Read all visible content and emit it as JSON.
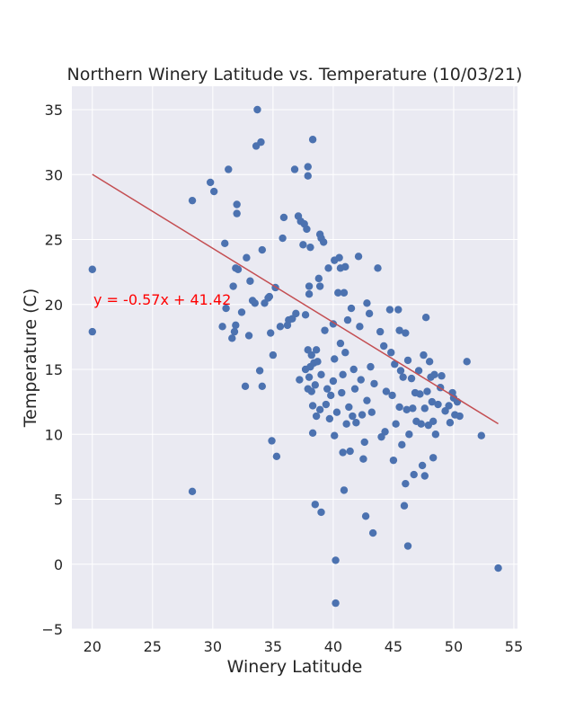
{
  "chart_data": {
    "type": "scatter",
    "title": "Northern Winery Latitude vs. Temperature (10/03/21)",
    "xlabel": "Winery Latitude",
    "ylabel": "Temperature (C)",
    "xlim": [
      18.3,
      55.3
    ],
    "ylim": [
      -5,
      36.8
    ],
    "xticks": [
      20,
      25,
      30,
      35,
      40,
      45,
      50,
      55
    ],
    "yticks": [
      -5,
      0,
      5,
      10,
      15,
      20,
      25,
      30,
      35
    ],
    "grid": true,
    "background": "#eaeaf2",
    "point_color": "#4c72b0",
    "regression": {
      "slope": -0.57,
      "intercept": 41.42,
      "x_range": [
        20,
        53.7
      ],
      "color": "#c44e52",
      "equation_label": "y = -0.57x + 41.42",
      "label_color": "#ff0000"
    },
    "points": [
      [
        20.0,
        22.7
      ],
      [
        20.0,
        17.9
      ],
      [
        28.3,
        28.0
      ],
      [
        28.3,
        5.6
      ],
      [
        29.8,
        29.4
      ],
      [
        30.1,
        28.7
      ],
      [
        30.8,
        18.3
      ],
      [
        31.0,
        24.7
      ],
      [
        31.1,
        19.7
      ],
      [
        31.3,
        30.4
      ],
      [
        31.6,
        17.4
      ],
      [
        31.7,
        21.4
      ],
      [
        31.8,
        17.9
      ],
      [
        31.9,
        18.4
      ],
      [
        31.9,
        22.8
      ],
      [
        32.0,
        27.0
      ],
      [
        32.0,
        27.7
      ],
      [
        32.1,
        22.7
      ],
      [
        32.4,
        19.4
      ],
      [
        32.7,
        13.7
      ],
      [
        32.8,
        23.6
      ],
      [
        33.0,
        17.6
      ],
      [
        33.1,
        21.8
      ],
      [
        33.3,
        20.3
      ],
      [
        33.5,
        20.1
      ],
      [
        33.6,
        32.2
      ],
      [
        33.7,
        35.0
      ],
      [
        33.9,
        14.9
      ],
      [
        34.0,
        32.5
      ],
      [
        34.1,
        24.2
      ],
      [
        34.1,
        13.7
      ],
      [
        34.3,
        20.1
      ],
      [
        34.6,
        20.5
      ],
      [
        34.7,
        20.6
      ],
      [
        34.8,
        17.8
      ],
      [
        34.9,
        9.5
      ],
      [
        35.0,
        16.1
      ],
      [
        35.2,
        21.3
      ],
      [
        35.3,
        8.3
      ],
      [
        35.6,
        18.3
      ],
      [
        35.8,
        25.1
      ],
      [
        35.9,
        26.7
      ],
      [
        36.2,
        18.4
      ],
      [
        36.3,
        18.8
      ],
      [
        36.6,
        18.9
      ],
      [
        36.8,
        30.4
      ],
      [
        36.9,
        19.3
      ],
      [
        37.1,
        26.8
      ],
      [
        37.2,
        14.2
      ],
      [
        37.3,
        26.4
      ],
      [
        37.5,
        24.6
      ],
      [
        37.6,
        26.2
      ],
      [
        37.7,
        19.2
      ],
      [
        37.7,
        15.0
      ],
      [
        37.8,
        25.8
      ],
      [
        37.9,
        30.6
      ],
      [
        37.9,
        29.9
      ],
      [
        37.9,
        16.5
      ],
      [
        37.9,
        13.5
      ],
      [
        38.0,
        21.4
      ],
      [
        38.0,
        20.8
      ],
      [
        38.0,
        14.4
      ],
      [
        38.1,
        15.2
      ],
      [
        38.1,
        24.4
      ],
      [
        38.2,
        16.1
      ],
      [
        38.2,
        13.3
      ],
      [
        38.3,
        32.7
      ],
      [
        38.3,
        12.2
      ],
      [
        38.3,
        10.1
      ],
      [
        38.4,
        15.5
      ],
      [
        38.5,
        13.8
      ],
      [
        38.5,
        4.6
      ],
      [
        38.6,
        16.5
      ],
      [
        38.6,
        11.4
      ],
      [
        38.7,
        15.6
      ],
      [
        38.8,
        22.0
      ],
      [
        38.9,
        21.4
      ],
      [
        38.9,
        25.4
      ],
      [
        38.9,
        11.9
      ],
      [
        39.0,
        25.1
      ],
      [
        39.0,
        14.6
      ],
      [
        39.0,
        4.0
      ],
      [
        39.2,
        24.8
      ],
      [
        39.3,
        18.0
      ],
      [
        39.4,
        12.3
      ],
      [
        39.5,
        13.5
      ],
      [
        39.6,
        22.8
      ],
      [
        39.7,
        11.2
      ],
      [
        39.8,
        13.0
      ],
      [
        40.0,
        18.5
      ],
      [
        40.0,
        14.1
      ],
      [
        40.1,
        23.4
      ],
      [
        40.1,
        15.8
      ],
      [
        40.1,
        9.9
      ],
      [
        40.2,
        0.3
      ],
      [
        40.2,
        -3.0
      ],
      [
        40.3,
        11.7
      ],
      [
        40.4,
        20.9
      ],
      [
        40.5,
        23.6
      ],
      [
        40.6,
        22.8
      ],
      [
        40.6,
        17.0
      ],
      [
        40.7,
        13.2
      ],
      [
        40.8,
        14.6
      ],
      [
        40.8,
        8.6
      ],
      [
        40.9,
        20.9
      ],
      [
        40.9,
        5.7
      ],
      [
        41.0,
        22.9
      ],
      [
        41.0,
        16.3
      ],
      [
        41.1,
        10.8
      ],
      [
        41.2,
        18.8
      ],
      [
        41.3,
        12.1
      ],
      [
        41.4,
        8.7
      ],
      [
        41.5,
        19.7
      ],
      [
        41.6,
        11.4
      ],
      [
        41.7,
        15.0
      ],
      [
        41.8,
        13.5
      ],
      [
        41.9,
        10.9
      ],
      [
        42.1,
        23.7
      ],
      [
        42.2,
        18.3
      ],
      [
        42.3,
        14.2
      ],
      [
        42.4,
        11.5
      ],
      [
        42.5,
        8.1
      ],
      [
        42.6,
        9.4
      ],
      [
        42.7,
        3.7
      ],
      [
        42.8,
        20.1
      ],
      [
        42.8,
        12.6
      ],
      [
        43.0,
        19.3
      ],
      [
        43.1,
        15.2
      ],
      [
        43.2,
        11.7
      ],
      [
        43.3,
        2.4
      ],
      [
        43.4,
        13.9
      ],
      [
        43.7,
        22.8
      ],
      [
        43.9,
        17.9
      ],
      [
        44.0,
        9.8
      ],
      [
        44.2,
        16.8
      ],
      [
        44.3,
        10.2
      ],
      [
        44.4,
        13.3
      ],
      [
        44.7,
        19.6
      ],
      [
        44.8,
        16.3
      ],
      [
        44.9,
        13.0
      ],
      [
        45.0,
        8.0
      ],
      [
        45.1,
        15.4
      ],
      [
        45.2,
        10.8
      ],
      [
        45.4,
        19.6
      ],
      [
        45.5,
        18.0
      ],
      [
        45.5,
        12.1
      ],
      [
        45.6,
        14.9
      ],
      [
        45.7,
        9.2
      ],
      [
        45.8,
        14.4
      ],
      [
        45.9,
        4.5
      ],
      [
        46.0,
        17.8
      ],
      [
        46.0,
        6.2
      ],
      [
        46.1,
        11.9
      ],
      [
        46.2,
        15.7
      ],
      [
        46.2,
        1.4
      ],
      [
        46.3,
        10.0
      ],
      [
        46.5,
        14.3
      ],
      [
        46.6,
        12.0
      ],
      [
        46.7,
        6.9
      ],
      [
        46.8,
        13.2
      ],
      [
        46.9,
        11.0
      ],
      [
        47.1,
        14.9
      ],
      [
        47.2,
        13.1
      ],
      [
        47.3,
        10.8
      ],
      [
        47.4,
        7.6
      ],
      [
        47.5,
        16.1
      ],
      [
        47.6,
        6.8
      ],
      [
        47.6,
        12.0
      ],
      [
        47.7,
        19.0
      ],
      [
        47.8,
        13.3
      ],
      [
        47.9,
        10.7
      ],
      [
        48.0,
        15.6
      ],
      [
        48.1,
        14.4
      ],
      [
        48.2,
        12.5
      ],
      [
        48.3,
        11.0
      ],
      [
        48.3,
        8.2
      ],
      [
        48.4,
        14.6
      ],
      [
        48.5,
        10.0
      ],
      [
        48.7,
        12.3
      ],
      [
        48.9,
        13.6
      ],
      [
        49.0,
        14.5
      ],
      [
        49.3,
        11.8
      ],
      [
        49.6,
        12.2
      ],
      [
        49.7,
        10.9
      ],
      [
        49.9,
        13.2
      ],
      [
        50.0,
        12.8
      ],
      [
        50.1,
        11.5
      ],
      [
        50.3,
        12.5
      ],
      [
        50.5,
        11.4
      ],
      [
        51.1,
        15.6
      ],
      [
        52.3,
        9.9
      ],
      [
        53.7,
        -0.3
      ]
    ]
  }
}
